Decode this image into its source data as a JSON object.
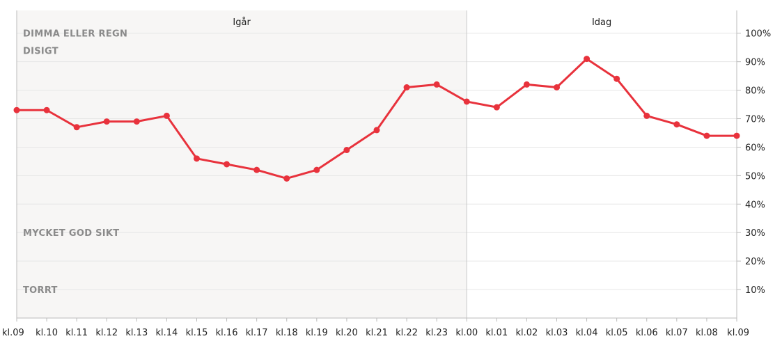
{
  "chart_data": {
    "type": "line",
    "periods": [
      {
        "label": "Igår",
        "from": "kl.09",
        "to": "kl.00"
      },
      {
        "label": "Idag",
        "from": "kl.00",
        "to": "kl.09"
      }
    ],
    "band_labels": [
      {
        "text": "DIMMA ELLER REGN",
        "level": 100
      },
      {
        "text": "DISIGT",
        "level": 94
      },
      {
        "text": "MYCKET GOD SIKT",
        "level": 30
      },
      {
        "text": "TORRT",
        "level": 10
      }
    ],
    "categories": [
      "kl.09",
      "kl.10",
      "kl.11",
      "kl.12",
      "kl.13",
      "kl.14",
      "kl.15",
      "kl.16",
      "kl.17",
      "kl.18",
      "kl.19",
      "kl.20",
      "kl.21",
      "kl.22",
      "kl.23",
      "kl.00",
      "kl.01",
      "kl.02",
      "kl.03",
      "kl.04",
      "kl.05",
      "kl.06",
      "kl.07",
      "kl.08",
      "kl.09"
    ],
    "series": [
      {
        "values": [
          73,
          73,
          67,
          69,
          69,
          71,
          56,
          54,
          52,
          49,
          52,
          59,
          66,
          81,
          82,
          76,
          74,
          82,
          81,
          91,
          84,
          71,
          68,
          64,
          64
        ],
        "color": "#e8323c"
      }
    ],
    "y_ticks": [
      "10%",
      "20%",
      "30%",
      "40%",
      "50%",
      "60%",
      "70%",
      "80%",
      "90%",
      "100%"
    ],
    "y_tick_values": [
      10,
      20,
      30,
      40,
      50,
      60,
      70,
      80,
      90,
      100
    ],
    "ylim": [
      0,
      108
    ],
    "y_axis_side": "right",
    "grid": true,
    "colors": {
      "past_background": "#f7f6f5",
      "grid": "#e6e6e6",
      "axis": "#bbbbbb",
      "line": "#e8323c"
    }
  }
}
